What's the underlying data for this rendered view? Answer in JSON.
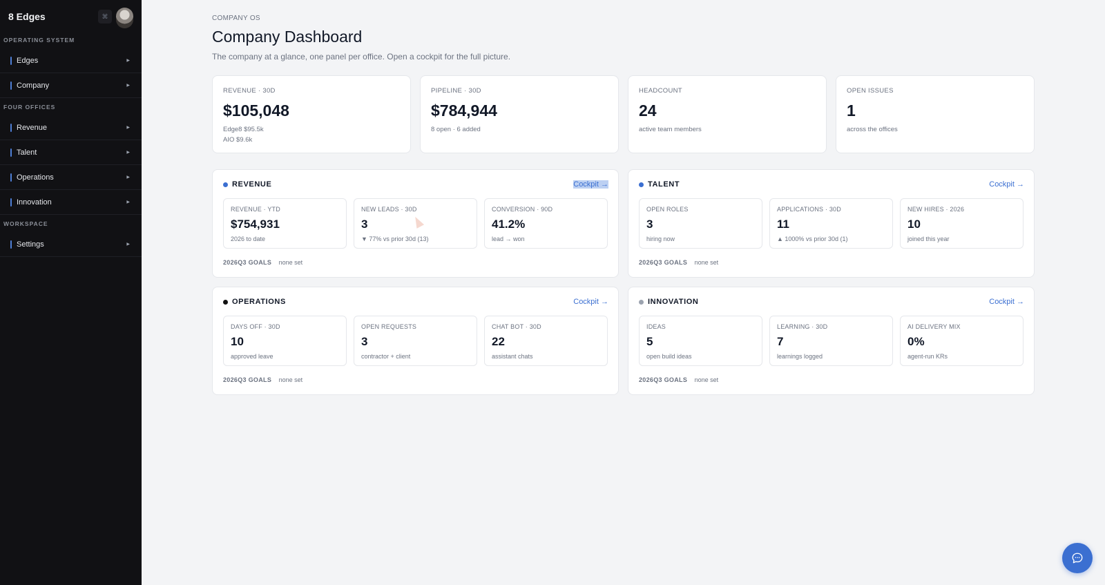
{
  "sidebar": {
    "app_name": "8 Edges",
    "collapse_glyph": "⌘",
    "sections": [
      {
        "label": "OPERATING SYSTEM",
        "items": [
          "Edges",
          "Company"
        ]
      },
      {
        "label": "FOUR OFFICES",
        "items": [
          "Revenue",
          "Talent",
          "Operations",
          "Innovation"
        ]
      },
      {
        "label": "WORKSPACE",
        "items": [
          "Settings"
        ]
      }
    ],
    "accent_color": "#4f7fd6"
  },
  "header": {
    "eyebrow": "COMPANY OS",
    "title": "Company Dashboard",
    "subtitle": "The company at a glance, one panel per office. Open a cockpit for the full picture."
  },
  "stats": [
    {
      "label": "REVENUE · 30D",
      "value": "$105,048",
      "sub": [
        "Edge8 $95.5k",
        "AIO $9.6k"
      ]
    },
    {
      "label": "PIPELINE · 30D",
      "value": "$784,944",
      "sub": [
        "8 open · 6 added"
      ]
    },
    {
      "label": "HEADCOUNT",
      "value": "24",
      "sub": [
        "active team members"
      ]
    },
    {
      "label": "OPEN ISSUES",
      "value": "1",
      "sub": [
        "across the offices"
      ]
    }
  ],
  "panels": [
    {
      "title": "REVENUE",
      "dot_color": "#3b6fd1",
      "cockpit": "Cockpit →",
      "selected": true,
      "metrics": [
        {
          "label": "REVENUE · YTD",
          "value": "$754,931",
          "sub": "2026 to date"
        },
        {
          "label": "NEW LEADS · 30D",
          "value": "3",
          "sub": "▼ 77% vs prior 30d (13)"
        },
        {
          "label": "CONVERSION · 90D",
          "value": "41.2%",
          "sub": "lead → won"
        }
      ],
      "goals_label": "2026Q3 GOALS",
      "goals_value": "none set"
    },
    {
      "title": "TALENT",
      "dot_color": "#3b6fd1",
      "cockpit": "Cockpit →",
      "selected": false,
      "metrics": [
        {
          "label": "OPEN ROLES",
          "value": "3",
          "sub": "hiring now"
        },
        {
          "label": "APPLICATIONS · 30D",
          "value": "11",
          "sub": "▲ 1000% vs prior 30d (1)"
        },
        {
          "label": "NEW HIRES · 2026",
          "value": "10",
          "sub": "joined this year"
        }
      ],
      "goals_label": "2026Q3 GOALS",
      "goals_value": "none set"
    },
    {
      "title": "OPERATIONS",
      "dot_color": "#111111",
      "cockpit": "Cockpit →",
      "selected": false,
      "metrics": [
        {
          "label": "DAYS OFF · 30D",
          "value": "10",
          "sub": "approved leave"
        },
        {
          "label": "OPEN REQUESTS",
          "value": "3",
          "sub": "contractor + client"
        },
        {
          "label": "CHAT BOT · 30D",
          "value": "22",
          "sub": "assistant chats"
        }
      ],
      "goals_label": "2026Q3 GOALS",
      "goals_value": "none set"
    },
    {
      "title": "INNOVATION",
      "dot_color": "#9ca3af",
      "cockpit": "Cockpit →",
      "selected": false,
      "metrics": [
        {
          "label": "IDEAS",
          "value": "5",
          "sub": "open build ideas"
        },
        {
          "label": "LEARNING · 30D",
          "value": "7",
          "sub": "learnings logged"
        },
        {
          "label": "AI DELIVERY MIX",
          "value": "0%",
          "sub": "agent-run KRs"
        }
      ],
      "goals_label": "2026Q3 GOALS",
      "goals_value": "none set"
    }
  ],
  "chat_button": {
    "icon": "chat-bubble-icon"
  }
}
